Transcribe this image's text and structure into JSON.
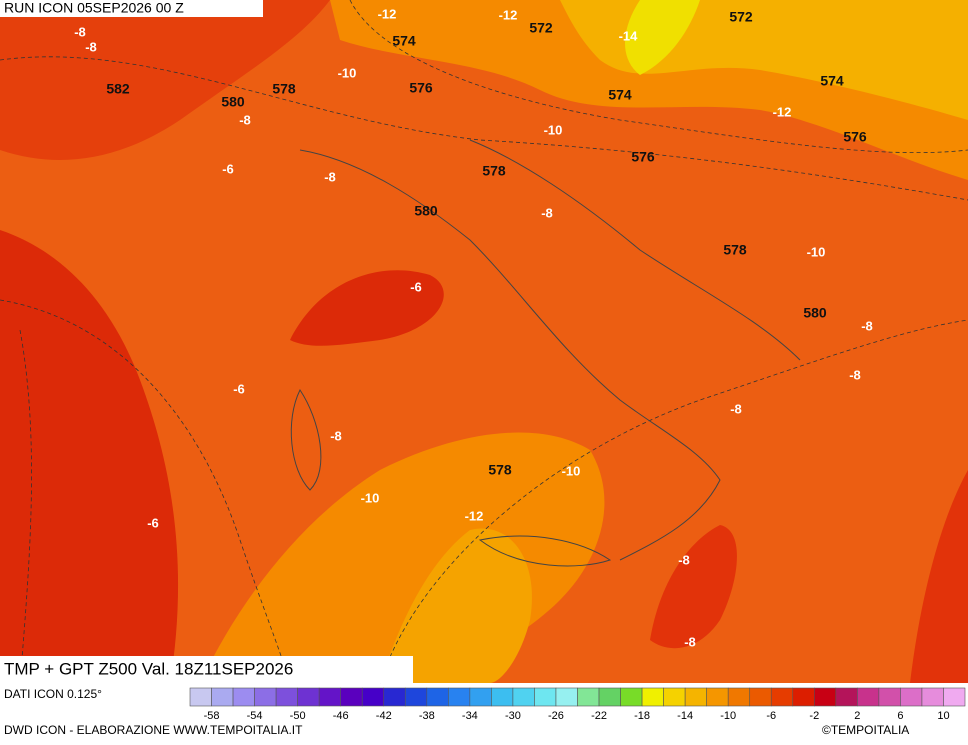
{
  "header": {
    "run": "RUN ICON 05SEP2026 00 Z",
    "title": "TMP + GPT Z500 Val. 18Z11SEP2026"
  },
  "map_labels": {
    "temperature": [
      -12,
      -12,
      -8,
      -8,
      -14,
      -10,
      -8,
      -12,
      -10,
      -6,
      -8,
      -8,
      -10,
      -6,
      -8,
      -8,
      -6,
      -8,
      -8,
      -10,
      -10,
      -12,
      -6,
      -8,
      -8
    ],
    "geopotential": [
      574,
      572,
      572,
      582,
      580,
      578,
      576,
      574,
      574,
      576,
      576,
      578,
      580,
      578,
      580,
      578
    ]
  },
  "colorbar": {
    "colors": [
      "#c8c8f0",
      "#aaaaf0",
      "#9c8cf0",
      "#8c6ee6",
      "#7d50dc",
      "#6e32d2",
      "#6414c8",
      "#5a00be",
      "#4600c8",
      "#2828d2",
      "#1e46dc",
      "#1e64e6",
      "#2882f0",
      "#32a0f0",
      "#3cbef0",
      "#50d2f0",
      "#6ee6f0",
      "#96f0f0",
      "#82e696",
      "#64d264",
      "#78dc28",
      "#f0f000",
      "#f5d200",
      "#f5b400",
      "#f59600",
      "#f07800",
      "#eb5a00",
      "#e63c00",
      "#dc1e00",
      "#c80014",
      "#b4145a",
      "#c8328c",
      "#d250aa",
      "#dc6ec8",
      "#e68cdc",
      "#f0aaf0"
    ],
    "ticks": [
      -58,
      -54,
      -50,
      -46,
      -42,
      -38,
      -34,
      -30,
      -26,
      -22,
      -18,
      -14,
      -10,
      -6,
      -2,
      2,
      6,
      10
    ]
  },
  "footer": {
    "data": "DATI ICON 0.125°",
    "credit": "DWD ICON - ELABORAZIONE WWW.TEMPOITALIA.IT",
    "copyright": "©TEMPOITALIA"
  }
}
